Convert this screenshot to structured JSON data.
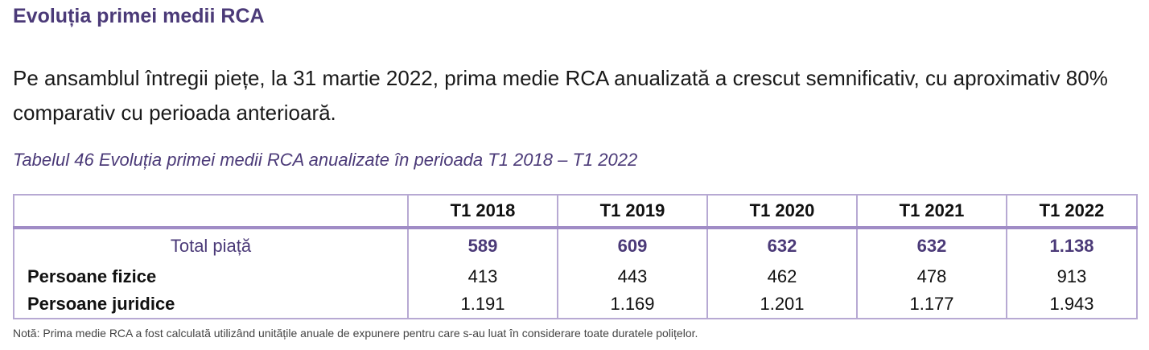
{
  "heading": "Evoluția primei medii RCA",
  "paragraph": "Pe ansamblul întregii piețe, la 31 martie 2022, prima medie RCA anualizată a crescut semnificativ, cu aproximativ 80% comparativ cu perioada anterioară.",
  "caption": "Tabelul 46 Evoluția primei medii RCA anualizate în perioada T1 2018 – T1 2022",
  "table": {
    "header_blank": "",
    "columns": [
      "T1 2018",
      "T1 2019",
      "T1 2020",
      "T1 2021",
      "T1 2022"
    ],
    "rows": [
      {
        "label": "Total piață",
        "values": [
          "589",
          "609",
          "632",
          "632",
          "1.138"
        ]
      },
      {
        "label": "Persoane fizice",
        "values": [
          "413",
          "443",
          "462",
          "478",
          "913"
        ]
      },
      {
        "label": "Persoane juridice",
        "values": [
          "1.191",
          "1.169",
          "1.201",
          "1.177",
          "1.943"
        ]
      }
    ]
  },
  "note": "Notă: Prima medie RCA a fost calculată utilizând unitățile anuale de expunere pentru care s-au luat în considerare toate duratele polițelor.",
  "colors": {
    "accent": "#4b3a78",
    "table_border": "#b7a9d3"
  }
}
